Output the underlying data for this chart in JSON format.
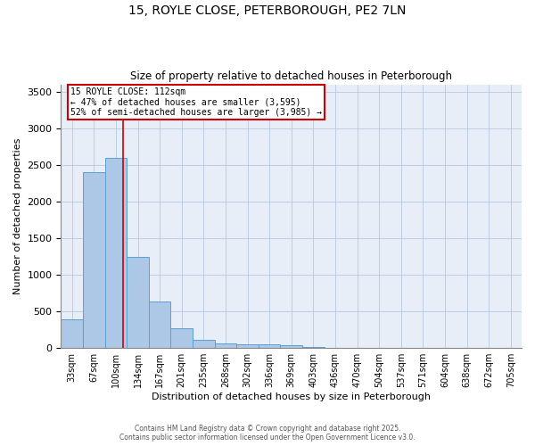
{
  "title1": "15, ROYLE CLOSE, PETERBOROUGH, PE2 7LN",
  "title2": "Size of property relative to detached houses in Peterborough",
  "xlabel": "Distribution of detached houses by size in Peterborough",
  "ylabel": "Number of detached properties",
  "bar_labels": [
    "33sqm",
    "67sqm",
    "100sqm",
    "134sqm",
    "167sqm",
    "201sqm",
    "235sqm",
    "268sqm",
    "302sqm",
    "336sqm",
    "369sqm",
    "403sqm",
    "436sqm",
    "470sqm",
    "504sqm",
    "537sqm",
    "571sqm",
    "604sqm",
    "638sqm",
    "672sqm",
    "705sqm"
  ],
  "bar_values": [
    390,
    2400,
    2600,
    1250,
    640,
    270,
    110,
    60,
    55,
    50,
    35,
    20,
    0,
    0,
    0,
    0,
    0,
    0,
    0,
    0,
    0
  ],
  "bar_color": "#adc8e6",
  "bar_edge_color": "#5a9fd4",
  "property_line_x": 2.33,
  "annotation_line1": "15 ROYLE CLOSE: 112sqm",
  "annotation_line2": "← 47% of detached houses are smaller (3,595)",
  "annotation_line3": "52% of semi-detached houses are larger (3,985) →",
  "red_line_color": "#cc0000",
  "ylim": [
    0,
    3600
  ],
  "yticks": [
    0,
    500,
    1000,
    1500,
    2000,
    2500,
    3000,
    3500
  ],
  "bg_color": "#e8eef8",
  "grid_color": "#b8c8de",
  "footnote1": "Contains HM Land Registry data © Crown copyright and database right 2025.",
  "footnote2": "Contains public sector information licensed under the Open Government Licence v3.0."
}
